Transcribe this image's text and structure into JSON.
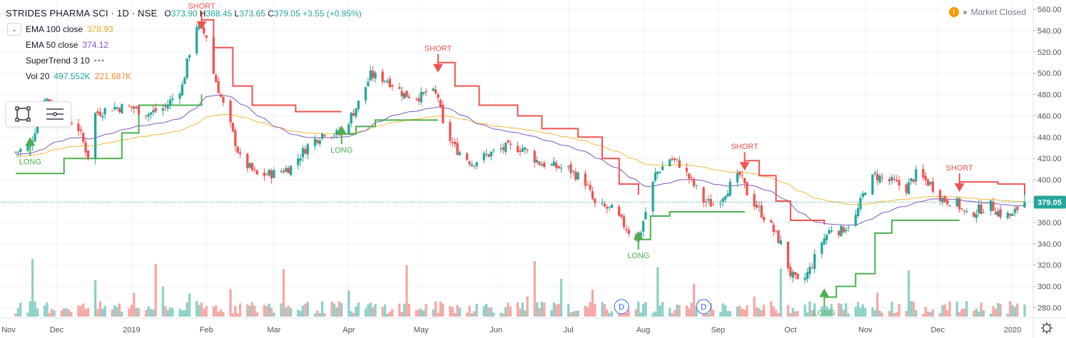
{
  "header": {
    "title": "STRIDES PHARMA SCI · 1D · NSE",
    "ohlc": [
      {
        "key": "O",
        "value": "373.90"
      },
      {
        "key": "H",
        "value": "388.45"
      },
      {
        "key": "L",
        "value": "373.65"
      },
      {
        "key": "C",
        "value": "379.05"
      }
    ],
    "change": "+3.55 (+0.95%)"
  },
  "indicators": [
    {
      "name": "EMA 100 close",
      "values": [
        "378.93"
      ],
      "colors": [
        "#f5a623"
      ]
    },
    {
      "name": "EMA 50 close",
      "values": [
        "374.12"
      ],
      "colors": [
        "#7e57c2"
      ]
    },
    {
      "name": "SuperTrend 3 10",
      "values": [],
      "colors": []
    },
    {
      "name": "Vol 20",
      "values": [
        "497.552K",
        "221.687K"
      ],
      "colors": [
        "#26a69a",
        "#f5882b"
      ]
    }
  ],
  "market_status": "Market Closed",
  "price_label": "379.05",
  "colors": {
    "up": "#26a69a",
    "down": "#ef5350",
    "vol_up": "#8fd0c8",
    "vol_down": "#f4a9a7",
    "ema100": "#f5b83d",
    "ema50": "#7e57c2",
    "st_up": "#4caf50",
    "st_down": "#ef5350",
    "grid": "#f0f3fa",
    "axis_text": "#50535e",
    "current": "#26a69a",
    "dividend": "#2962ff"
  },
  "chart_data": {
    "type": "candlestick",
    "title": "STRIDES PHARMA SCI · 1D · NSE",
    "y_axis": {
      "ticks": [
        280,
        300,
        320,
        340,
        360,
        380,
        400,
        420,
        440,
        460,
        480,
        500,
        520,
        540,
        560
      ],
      "range": [
        273,
        568
      ],
      "position": "right"
    },
    "x_axis": {
      "range": [
        "2018-11-14",
        "2020-01-06"
      ],
      "ticks": [
        {
          "label": "Nov",
          "date": "2018-11-01"
        },
        {
          "label": "Dec",
          "date": "2018-12-01"
        },
        {
          "label": "2019",
          "date": "2019-01-01"
        },
        {
          "label": "Feb",
          "date": "2019-02-01"
        },
        {
          "label": "Mar",
          "date": "2019-03-01"
        },
        {
          "label": "Apr",
          "date": "2019-04-01"
        },
        {
          "label": "May",
          "date": "2019-05-01"
        },
        {
          "label": "Jun",
          "date": "2019-06-01"
        },
        {
          "label": "Jul",
          "date": "2019-07-01"
        },
        {
          "label": "Aug",
          "date": "2019-08-01"
        },
        {
          "label": "Sep",
          "date": "2019-09-01"
        },
        {
          "label": "Oct",
          "date": "2019-10-01"
        },
        {
          "label": "Nov",
          "date": "2019-11-01"
        },
        {
          "label": "Dec",
          "date": "2019-12-01"
        },
        {
          "label": "2020",
          "date": "2020-01-01"
        }
      ]
    },
    "price_path": [
      [
        "2018-11-14",
        426
      ],
      [
        "2018-11-20",
        432
      ],
      [
        "2018-11-26",
        478
      ],
      [
        "2018-12-03",
        462
      ],
      [
        "2018-12-10",
        448
      ],
      [
        "2018-12-14",
        422
      ],
      [
        "2018-12-17",
        462
      ],
      [
        "2018-12-24",
        468
      ],
      [
        "2019-01-01",
        468
      ],
      [
        "2019-01-08",
        462
      ],
      [
        "2019-01-15",
        468
      ],
      [
        "2019-01-22",
        488
      ],
      [
        "2019-01-25",
        520
      ],
      [
        "2019-01-28",
        545
      ],
      [
        "2019-02-01",
        535
      ],
      [
        "2019-02-04",
        500
      ],
      [
        "2019-02-08",
        470
      ],
      [
        "2019-02-11",
        450
      ],
      [
        "2019-02-15",
        420
      ],
      [
        "2019-02-22",
        404
      ],
      [
        "2019-03-01",
        406
      ],
      [
        "2019-03-08",
        412
      ],
      [
        "2019-03-15",
        432
      ],
      [
        "2019-03-22",
        445
      ],
      [
        "2019-03-29",
        442
      ],
      [
        "2019-04-01",
        456
      ],
      [
        "2019-04-05",
        472
      ],
      [
        "2019-04-10",
        498
      ],
      [
        "2019-04-17",
        494
      ],
      [
        "2019-04-24",
        480
      ],
      [
        "2019-05-01",
        478
      ],
      [
        "2019-05-04",
        484
      ],
      [
        "2019-05-08",
        478
      ],
      [
        "2019-05-10",
        450
      ],
      [
        "2019-05-15",
        430
      ],
      [
        "2019-05-22",
        416
      ],
      [
        "2019-05-29",
        424
      ],
      [
        "2019-06-05",
        430
      ],
      [
        "2019-06-12",
        430
      ],
      [
        "2019-06-19",
        416
      ],
      [
        "2019-06-26",
        412
      ],
      [
        "2019-07-01",
        410
      ],
      [
        "2019-07-08",
        398
      ],
      [
        "2019-07-12",
        376
      ],
      [
        "2019-07-19",
        372
      ],
      [
        "2019-07-26",
        352
      ],
      [
        "2019-07-30",
        344
      ],
      [
        "2019-08-02",
        370
      ],
      [
        "2019-08-06",
        405
      ],
      [
        "2019-08-12",
        420
      ],
      [
        "2019-08-16",
        415
      ],
      [
        "2019-08-20",
        402
      ],
      [
        "2019-08-26",
        380
      ],
      [
        "2019-08-31",
        376
      ],
      [
        "2019-09-05",
        392
      ],
      [
        "2019-09-10",
        404
      ],
      [
        "2019-09-13",
        388
      ],
      [
        "2019-09-18",
        372
      ],
      [
        "2019-09-23",
        356
      ],
      [
        "2019-09-27",
        340
      ],
      [
        "2019-10-01",
        312
      ],
      [
        "2019-10-05",
        300
      ],
      [
        "2019-10-09",
        316
      ],
      [
        "2019-10-14",
        342
      ],
      [
        "2019-10-18",
        355
      ],
      [
        "2019-10-22",
        352
      ],
      [
        "2019-10-28",
        365
      ],
      [
        "2019-11-01",
        392
      ],
      [
        "2019-11-05",
        404
      ],
      [
        "2019-11-12",
        398
      ],
      [
        "2019-11-18",
        392
      ],
      [
        "2019-11-22",
        405
      ],
      [
        "2019-11-28",
        396
      ],
      [
        "2019-12-03",
        382
      ],
      [
        "2019-12-09",
        378
      ],
      [
        "2019-12-13",
        366
      ],
      [
        "2019-12-18",
        372
      ],
      [
        "2019-12-23",
        376
      ],
      [
        "2019-12-27",
        368
      ],
      [
        "2020-01-01",
        366
      ],
      [
        "2020-01-03",
        373
      ],
      [
        "2020-01-06",
        379
      ]
    ],
    "supertrend": [
      {
        "from": "2018-11-14",
        "to": "2019-01-30",
        "direction": "up",
        "points": [
          [
            "2018-11-14",
            406
          ],
          [
            "2018-12-01",
            406
          ],
          [
            "2018-12-04",
            420
          ],
          [
            "2018-12-26",
            420
          ],
          [
            "2018-12-28",
            444
          ],
          [
            "2019-01-04",
            470
          ],
          [
            "2019-01-22",
            470
          ],
          [
            "2019-01-30",
            480
          ]
        ]
      },
      {
        "from": "2019-01-30",
        "to": "2019-03-29",
        "direction": "down",
        "points": [
          [
            "2019-01-30",
            550
          ],
          [
            "2019-02-04",
            524
          ],
          [
            "2019-02-12",
            488
          ],
          [
            "2019-02-20",
            470
          ],
          [
            "2019-03-10",
            464
          ],
          [
            "2019-03-29",
            464
          ]
        ]
      },
      {
        "from": "2019-03-29",
        "to": "2019-05-08",
        "direction": "up",
        "points": [
          [
            "2019-03-29",
            443
          ],
          [
            "2019-04-04",
            450
          ],
          [
            "2019-04-12",
            456
          ],
          [
            "2019-05-08",
            456
          ]
        ]
      },
      {
        "from": "2019-05-08",
        "to": "2019-07-30",
        "direction": "down",
        "points": [
          [
            "2019-05-08",
            510
          ],
          [
            "2019-05-15",
            488
          ],
          [
            "2019-05-25",
            470
          ],
          [
            "2019-06-10",
            460
          ],
          [
            "2019-06-20",
            448
          ],
          [
            "2019-07-05",
            440
          ],
          [
            "2019-07-15",
            420
          ],
          [
            "2019-07-22",
            396
          ],
          [
            "2019-07-30",
            386
          ]
        ]
      },
      {
        "from": "2019-07-30",
        "to": "2019-09-12",
        "direction": "up",
        "points": [
          [
            "2019-07-30",
            344
          ],
          [
            "2019-08-04",
            366
          ],
          [
            "2019-08-12",
            370
          ],
          [
            "2019-09-12",
            370
          ]
        ]
      },
      {
        "from": "2019-09-12",
        "to": "2019-10-15",
        "direction": "down",
        "points": [
          [
            "2019-09-12",
            418
          ],
          [
            "2019-09-18",
            404
          ],
          [
            "2019-09-25",
            380
          ],
          [
            "2019-10-01",
            362
          ],
          [
            "2019-10-15",
            358
          ]
        ]
      },
      {
        "from": "2019-10-15",
        "to": "2019-12-10",
        "direction": "up",
        "points": [
          [
            "2019-10-15",
            290
          ],
          [
            "2019-10-20",
            300
          ],
          [
            "2019-10-28",
            312
          ],
          [
            "2019-11-05",
            350
          ],
          [
            "2019-11-12",
            362
          ],
          [
            "2019-12-10",
            362
          ]
        ]
      },
      {
        "from": "2019-12-10",
        "to": "2020-01-06",
        "direction": "down",
        "points": [
          [
            "2019-12-10",
            398
          ],
          [
            "2019-12-26",
            396
          ],
          [
            "2020-01-06",
            386
          ]
        ]
      }
    ],
    "signals": [
      {
        "label": "LONG",
        "date": "2018-11-20",
        "type": "long"
      },
      {
        "label": "SHORT",
        "date": "2019-01-30",
        "type": "short"
      },
      {
        "label": "LONG",
        "date": "2019-03-29",
        "type": "long"
      },
      {
        "label": "SHORT",
        "date": "2019-05-08",
        "type": "short"
      },
      {
        "label": "LONG",
        "date": "2019-07-30",
        "type": "long"
      },
      {
        "label": "SHORT",
        "date": "2019-09-12",
        "type": "short"
      },
      {
        "label": "LONG",
        "date": "2019-10-15",
        "type": "long"
      },
      {
        "label": "SHORT",
        "date": "2019-12-10",
        "type": "short"
      }
    ],
    "dividends": [
      {
        "label": "D",
        "date": "2019-07-23"
      },
      {
        "label": "D",
        "date": "2019-08-26"
      }
    ],
    "last_close": 379.05
  }
}
